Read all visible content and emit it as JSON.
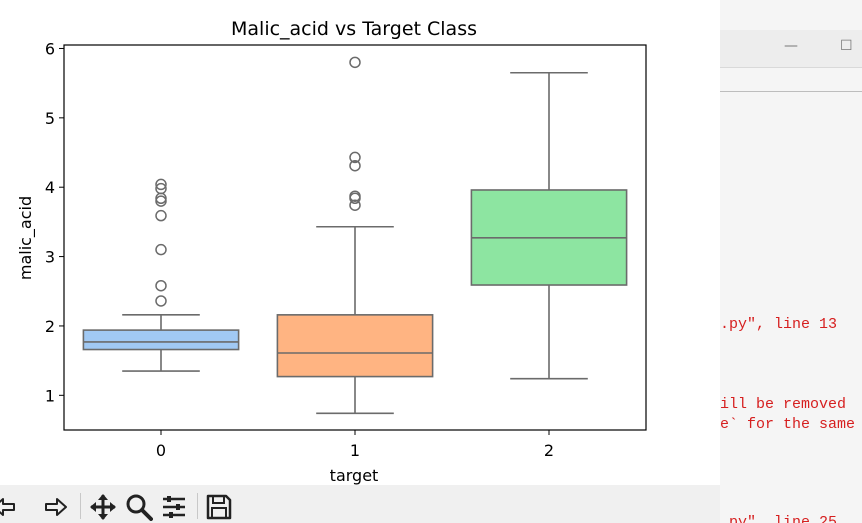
{
  "background_window": {
    "minimize_glyph": "—",
    "maximize_glyph": "☐",
    "console_lines": [
      ".py\", line 13",
      "ill be removed",
      "e` for the same",
      ".py\", line 25"
    ]
  },
  "toolbar": {
    "icons": [
      "back-arrow-icon",
      "forward-arrow-icon",
      "pan-icon",
      "zoom-icon",
      "configure-subplots-icon",
      "save-icon"
    ]
  },
  "chart_data": {
    "type": "box",
    "title": "Malic_acid vs Target Class",
    "xlabel": "target",
    "ylabel": "malic_acid",
    "categories": [
      "0",
      "1",
      "2"
    ],
    "ylim": [
      0.5,
      6.05
    ],
    "yticks": [
      1,
      2,
      3,
      4,
      5,
      6
    ],
    "grid": false,
    "legend": "none",
    "colors": [
      "#a1c9f4",
      "#ffb482",
      "#8de5a1"
    ],
    "edge_color": "#6b6b6b",
    "boxes": [
      {
        "whislo": 1.35,
        "q1": 1.66,
        "med": 1.77,
        "q3": 1.94,
        "whishi": 2.16,
        "fliers": [
          2.36,
          2.58,
          3.1,
          3.59,
          3.8,
          3.84,
          3.98,
          4.04
        ]
      },
      {
        "whislo": 0.74,
        "q1": 1.27,
        "med": 1.61,
        "q3": 2.16,
        "whishi": 3.43,
        "fliers": [
          3.74,
          3.84,
          3.87,
          4.31,
          4.43,
          5.8
        ]
      },
      {
        "whislo": 1.24,
        "q1": 2.59,
        "med": 3.27,
        "q3": 3.96,
        "whishi": 5.65,
        "fliers": []
      }
    ]
  }
}
